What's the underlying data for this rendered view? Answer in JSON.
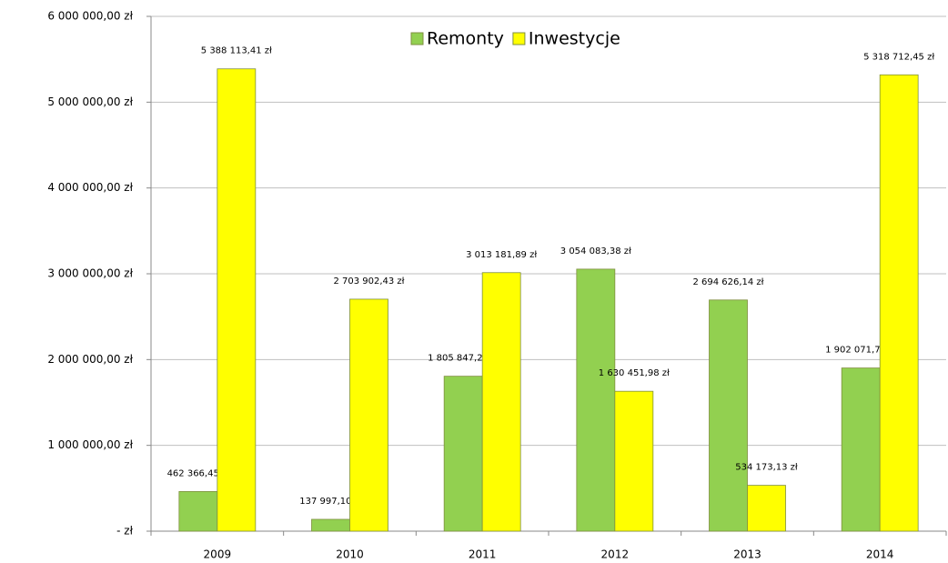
{
  "chart_data": {
    "type": "bar",
    "categories": [
      "2009",
      "2010",
      "2011",
      "2012",
      "2013",
      "2014"
    ],
    "series": [
      {
        "name": "Remonty",
        "color": "#92d050",
        "values": [
          462366.45,
          137997.1,
          1805847.2,
          3054083.38,
          2694626.14,
          1902071.78
        ],
        "value_labels": [
          "462 366,45 zł",
          "137 997,10 zł",
          "1 805 847,20 zł",
          "3 054 083,38 zł",
          "2 694 626,14 zł",
          "1 902 071,78 zł"
        ]
      },
      {
        "name": "Inwestycje",
        "color": "#ffff00",
        "values": [
          5388113.41,
          2703902.43,
          3013181.89,
          1630451.98,
          534173.13,
          5318712.45
        ],
        "value_labels": [
          "5 388 113,41 zł",
          "2 703 902,43 zł",
          "3 013 181,89 zł",
          "1 630 451,98 zł",
          "534 173,13 zł",
          "5 318 712,45 zł"
        ]
      }
    ],
    "ylim": [
      0,
      6000000
    ],
    "yticks": [
      {
        "value": 0,
        "label": "-  zł"
      },
      {
        "value": 1000000,
        "label": "1 000 000,00 zł"
      },
      {
        "value": 2000000,
        "label": "2 000 000,00 zł"
      },
      {
        "value": 3000000,
        "label": "3 000 000,00 zł"
      },
      {
        "value": 4000000,
        "label": "4 000 000,00 zł"
      },
      {
        "value": 5000000,
        "label": "5 000 000,00 zł"
      },
      {
        "value": 6000000,
        "label": "6 000 000,00 zł"
      }
    ],
    "grid": true,
    "legend": "top"
  }
}
